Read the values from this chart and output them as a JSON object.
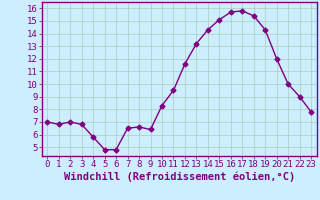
{
  "x": [
    0,
    1,
    2,
    3,
    4,
    5,
    6,
    7,
    8,
    9,
    10,
    11,
    12,
    13,
    14,
    15,
    16,
    17,
    18,
    19,
    20,
    21,
    22,
    23
  ],
  "y": [
    7.0,
    6.8,
    7.0,
    6.8,
    5.8,
    4.8,
    4.8,
    6.5,
    6.6,
    6.4,
    8.3,
    9.5,
    11.6,
    13.2,
    14.3,
    15.1,
    15.7,
    15.8,
    15.4,
    14.3,
    12.0,
    10.0,
    9.0,
    7.8
  ],
  "line_color": "#800080",
  "marker": "D",
  "marker_size": 2.5,
  "bg_color": "#cceeff",
  "grid_color": "#aaccbb",
  "xlabel": "Windchill (Refroidissement éolien,°C)",
  "xlim": [
    -0.5,
    23.5
  ],
  "ylim": [
    4.3,
    16.5
  ],
  "yticks": [
    5,
    6,
    7,
    8,
    9,
    10,
    11,
    12,
    13,
    14,
    15,
    16
  ],
  "xticks": [
    0,
    1,
    2,
    3,
    4,
    5,
    6,
    7,
    8,
    9,
    10,
    11,
    12,
    13,
    14,
    15,
    16,
    17,
    18,
    19,
    20,
    21,
    22,
    23
  ],
  "xlabel_fontsize": 7.5,
  "tick_fontsize": 6.5,
  "label_color": "#800080",
  "spine_color": "#800080",
  "linewidth": 1.0
}
